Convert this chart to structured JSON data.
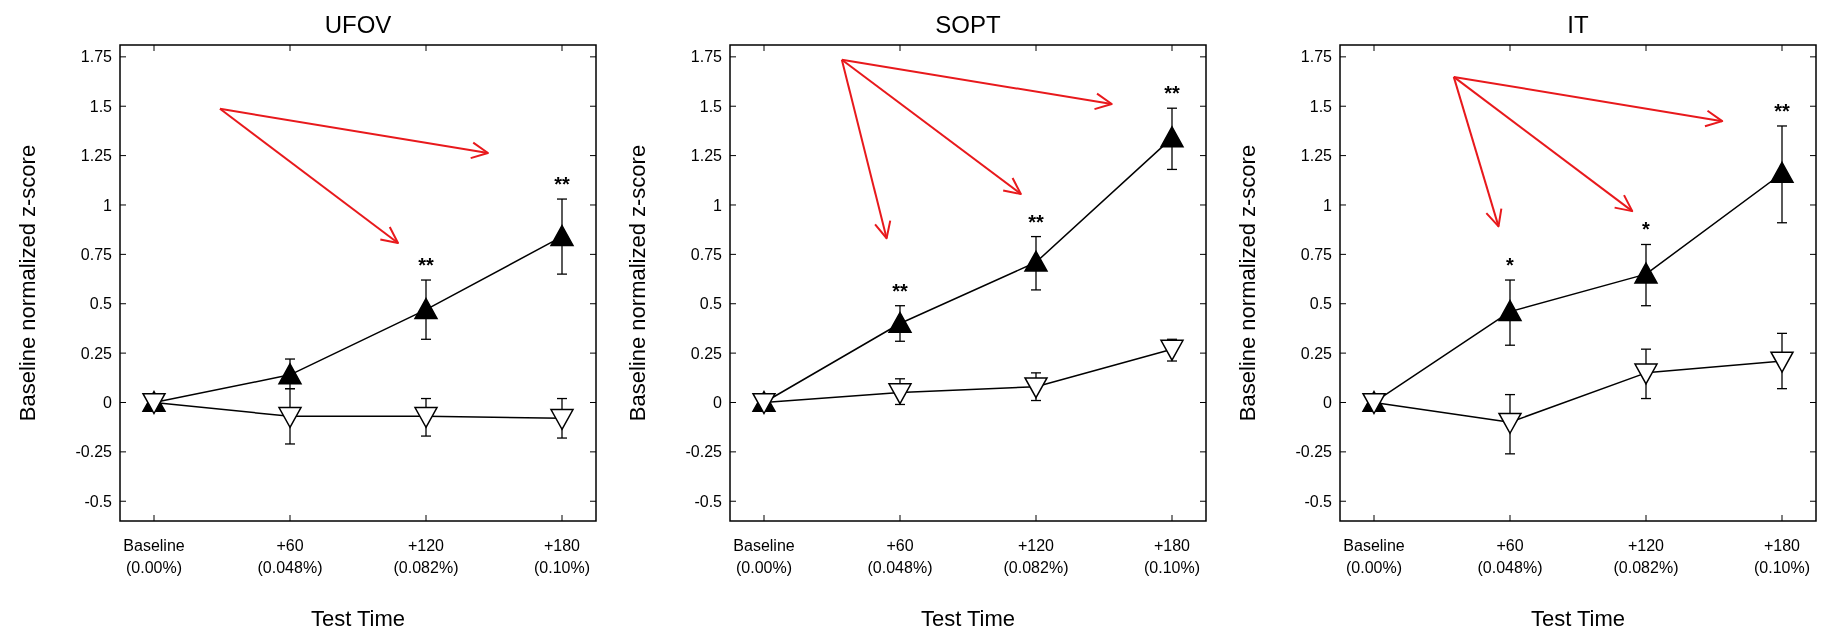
{
  "chart_data": [
    {
      "type": "line",
      "title": "UFOV",
      "xlabel": "Test Time",
      "ylabel": "Baseline normalized z-score",
      "categories": [
        "Baseline\n(0.00%)",
        "+60\n(0.048%)",
        "+120\n(0.082%)",
        "+180\n(0.10%)"
      ],
      "ylim": [
        -0.6,
        1.81
      ],
      "yticks": [
        -0.5,
        -0.25,
        0,
        0.25,
        0.5,
        0.75,
        1,
        1.25,
        1.5,
        1.75
      ],
      "grid": false,
      "series": [
        {
          "color": "#000000",
          "marker": "triangle",
          "values": [
            0,
            0.14,
            0.47,
            0.84
          ],
          "errors": [
            null,
            [
              0.07,
              0.22
            ],
            [
              0.32,
              0.62
            ],
            [
              0.65,
              1.03
            ]
          ]
        },
        {
          "color": "#ffffff",
          "marker": "triangle-down",
          "values": [
            0,
            -0.07,
            -0.07,
            -0.08
          ],
          "errors": [
            null,
            [
              -0.21,
              0.07
            ],
            [
              -0.17,
              0.02
            ],
            [
              -0.18,
              0.02
            ]
          ]
        }
      ],
      "annotations": [
        {
          "text": "**",
          "x": "+120\n(0.082%)",
          "y": 0.62
        },
        {
          "text": "**",
          "x": "+180\n(0.10%)",
          "y": 1.03
        }
      ]
    },
    {
      "type": "line",
      "title": "SOPT",
      "xlabel": "Test Time",
      "ylabel": "Baseline normalized z-score",
      "categories": [
        "Baseline\n(0.00%)",
        "+60\n(0.048%)",
        "+120\n(0.082%)",
        "+180\n(0.10%)"
      ],
      "ylim": [
        -0.6,
        1.81
      ],
      "yticks": [
        -0.5,
        -0.25,
        0,
        0.25,
        0.5,
        0.75,
        1,
        1.25,
        1.5,
        1.75
      ],
      "grid": false,
      "series": [
        {
          "color": "#000000",
          "marker": "triangle",
          "values": [
            0,
            0.4,
            0.71,
            1.34
          ],
          "errors": [
            null,
            [
              0.31,
              0.49
            ],
            [
              0.57,
              0.84
            ],
            [
              1.18,
              1.49
            ]
          ]
        },
        {
          "color": "#ffffff",
          "marker": "triangle-down",
          "values": [
            0,
            0.05,
            0.08,
            0.27
          ],
          "errors": [
            null,
            [
              -0.01,
              0.12
            ],
            [
              0.01,
              0.15
            ],
            [
              0.21,
              0.32
            ]
          ]
        }
      ],
      "annotations": [
        {
          "text": "**",
          "x": "+60\n(0.048%)",
          "y": 0.49
        },
        {
          "text": "**",
          "x": "+120\n(0.082%)",
          "y": 0.84
        },
        {
          "text": "**",
          "x": "+180\n(0.10%)",
          "y": 1.49
        }
      ]
    },
    {
      "type": "line",
      "title": "IT",
      "xlabel": "Test Time",
      "ylabel": "Baseline normalized z-score",
      "categories": [
        "Baseline\n(0.00%)",
        "+60\n(0.048%)",
        "+120\n(0.082%)",
        "+180\n(0.10%)"
      ],
      "ylim": [
        -0.6,
        1.81
      ],
      "yticks": [
        -0.5,
        -0.25,
        0,
        0.25,
        0.5,
        0.75,
        1,
        1.25,
        1.5,
        1.75
      ],
      "grid": false,
      "series": [
        {
          "color": "#000000",
          "marker": "triangle",
          "values": [
            0,
            0.46,
            0.65,
            1.16
          ],
          "errors": [
            null,
            [
              0.29,
              0.62
            ],
            [
              0.49,
              0.8
            ],
            [
              0.91,
              1.4
            ]
          ]
        },
        {
          "color": "#ffffff",
          "marker": "triangle-down",
          "values": [
            0,
            -0.1,
            0.15,
            0.21
          ],
          "errors": [
            null,
            [
              -0.26,
              0.04
            ],
            [
              0.02,
              0.27
            ],
            [
              0.07,
              0.35
            ]
          ]
        }
      ],
      "annotations": [
        {
          "text": "*",
          "x": "+60\n(0.048%)",
          "y": 0.62
        },
        {
          "text": "*",
          "x": "+120\n(0.082%)",
          "y": 0.8
        },
        {
          "text": "**",
          "x": "+180\n(0.10%)",
          "y": 1.4
        }
      ]
    }
  ]
}
